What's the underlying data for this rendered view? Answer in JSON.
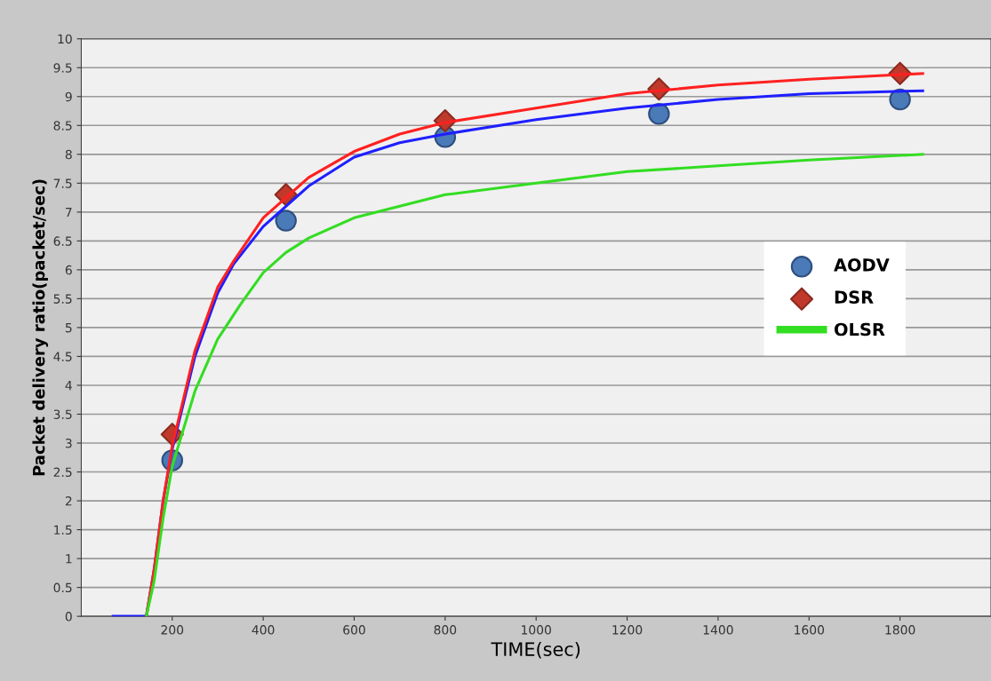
{
  "chart_data": {
    "type": "line",
    "xlabel": "TIME(sec)",
    "ylabel": "Packet delivery ratio(packet/sec)",
    "xlim": [
      0,
      2000
    ],
    "xticks": [
      200,
      400,
      600,
      800,
      1000,
      1200,
      1400,
      1600,
      1800
    ],
    "ylim": [
      0,
      10
    ],
    "yticks": [
      0,
      0.5,
      1,
      1.5,
      2,
      2.5,
      3,
      3.5,
      4,
      4.5,
      5,
      5.5,
      6,
      6.5,
      7,
      7.5,
      8,
      8.5,
      9,
      9.5,
      10
    ],
    "grid": "y",
    "legend": "right",
    "series": [
      {
        "color": "#1f1fff",
        "x": [
          70,
          143,
          160,
          180,
          200,
          250,
          300,
          335,
          400,
          450,
          500,
          600,
          700,
          800,
          1000,
          1200,
          1400,
          1600,
          1850
        ],
        "values": [
          0,
          0,
          0.8,
          2.0,
          2.9,
          4.5,
          5.6,
          6.1,
          6.75,
          7.1,
          7.45,
          7.95,
          8.2,
          8.35,
          8.6,
          8.8,
          8.95,
          9.05,
          9.1
        ]
      },
      {
        "name": "AODV",
        "type": "scatter",
        "marker": "circle",
        "color": "#4a7ab8",
        "x": [
          200,
          450,
          800,
          1270,
          1800
        ],
        "values": [
          2.7,
          6.85,
          8.3,
          8.7,
          8.95
        ]
      },
      {
        "color": "#ff2020",
        "x": [
          143,
          160,
          180,
          200,
          250,
          300,
          335,
          400,
          450,
          500,
          600,
          700,
          800,
          1000,
          1200,
          1400,
          1600,
          1850
        ],
        "values": [
          0,
          0.8,
          2.0,
          2.95,
          4.6,
          5.7,
          6.15,
          6.9,
          7.25,
          7.6,
          8.05,
          8.35,
          8.55,
          8.8,
          9.05,
          9.2,
          9.3,
          9.4
        ]
      },
      {
        "name": "DSR",
        "type": "scatter",
        "marker": "diamond",
        "color": "#c0392b",
        "x": [
          200,
          450,
          800,
          1270,
          1800
        ],
        "values": [
          3.15,
          7.3,
          8.58,
          9.13,
          9.4
        ]
      },
      {
        "name": "OLSR",
        "color": "#33dd22",
        "x": [
          143,
          160,
          180,
          200,
          250,
          300,
          350,
          400,
          450,
          500,
          600,
          700,
          800,
          1000,
          1200,
          1400,
          1600,
          1850
        ],
        "values": [
          0,
          0.6,
          1.7,
          2.6,
          3.9,
          4.8,
          5.4,
          5.95,
          6.3,
          6.55,
          6.9,
          7.1,
          7.3,
          7.5,
          7.7,
          7.8,
          7.9,
          8.0
        ]
      }
    ]
  }
}
